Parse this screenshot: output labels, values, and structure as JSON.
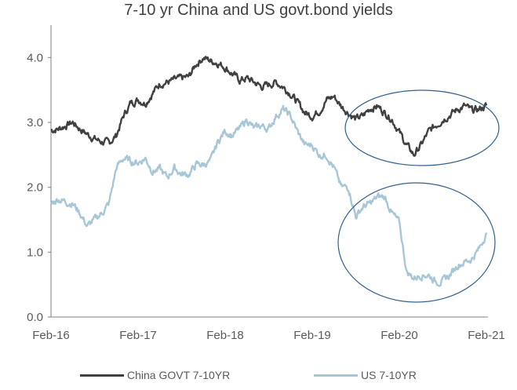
{
  "chart_data": {
    "type": "line",
    "title": "7-10 yr China and US govt.bond yields",
    "xlabel": "",
    "ylabel": "",
    "x_ticks": [
      "Feb-16",
      "Feb-17",
      "Feb-18",
      "Feb-19",
      "Feb-20",
      "Feb-21"
    ],
    "y_ticks": [
      "0.0",
      "1.0",
      "2.0",
      "3.0",
      "4.0"
    ],
    "ylim": [
      0,
      4.5
    ],
    "grid": false,
    "legend_position": "bottom",
    "annotations": [
      "ellipse around China yields Feb-19 to Feb-21",
      "ellipse around US yields Feb-19 to Feb-21"
    ],
    "series": [
      {
        "name": "China GOVT 7-10YR",
        "color": "#404040",
        "x": [
          "Feb-16",
          "Mar-16",
          "Apr-16",
          "May-16",
          "Jun-16",
          "Jul-16",
          "Aug-16",
          "Sep-16",
          "Oct-16",
          "Nov-16",
          "Dec-16",
          "Jan-17",
          "Feb-17",
          "Mar-17",
          "Apr-17",
          "May-17",
          "Jun-17",
          "Jul-17",
          "Aug-17",
          "Sep-17",
          "Oct-17",
          "Nov-17",
          "Dec-17",
          "Jan-18",
          "Feb-18",
          "Mar-18",
          "Apr-18",
          "May-18",
          "Jun-18",
          "Jul-18",
          "Aug-18",
          "Sep-18",
          "Oct-18",
          "Nov-18",
          "Dec-18",
          "Jan-19",
          "Feb-19",
          "Mar-19",
          "Apr-19",
          "May-19",
          "Jun-19",
          "Jul-19",
          "Aug-19",
          "Sep-19",
          "Oct-19",
          "Nov-19",
          "Dec-19",
          "Jan-20",
          "Feb-20",
          "Mar-20",
          "Apr-20",
          "May-20",
          "Jun-20",
          "Jul-20",
          "Aug-20",
          "Sep-20",
          "Oct-20",
          "Nov-20",
          "Dec-20",
          "Jan-21",
          "Feb-21"
        ],
        "values": [
          2.88,
          2.9,
          2.95,
          3.0,
          2.9,
          2.82,
          2.75,
          2.7,
          2.68,
          2.8,
          3.1,
          3.3,
          3.35,
          3.3,
          3.45,
          3.6,
          3.62,
          3.65,
          3.68,
          3.7,
          3.9,
          4.0,
          3.95,
          3.92,
          3.85,
          3.75,
          3.65,
          3.68,
          3.62,
          3.55,
          3.58,
          3.62,
          3.55,
          3.45,
          3.3,
          3.15,
          3.1,
          3.18,
          3.35,
          3.4,
          3.25,
          3.15,
          3.05,
          3.1,
          3.22,
          3.25,
          3.15,
          3.05,
          2.85,
          2.65,
          2.5,
          2.65,
          2.85,
          2.95,
          3.05,
          3.12,
          3.2,
          3.25,
          3.18,
          3.2,
          3.26
        ]
      },
      {
        "name": "US 7-10YR",
        "color": "#a7c7d7",
        "x": [
          "Feb-16",
          "Mar-16",
          "Apr-16",
          "May-16",
          "Jun-16",
          "Jul-16",
          "Aug-16",
          "Sep-16",
          "Oct-16",
          "Nov-16",
          "Dec-16",
          "Jan-17",
          "Feb-17",
          "Mar-17",
          "Apr-17",
          "May-17",
          "Jun-17",
          "Jul-17",
          "Aug-17",
          "Sep-17",
          "Oct-17",
          "Nov-17",
          "Dec-17",
          "Jan-18",
          "Feb-18",
          "Mar-18",
          "Apr-18",
          "May-18",
          "Jun-18",
          "Jul-18",
          "Aug-18",
          "Sep-18",
          "Oct-18",
          "Nov-18",
          "Dec-18",
          "Jan-19",
          "Feb-19",
          "Mar-19",
          "Apr-19",
          "May-19",
          "Jun-19",
          "Jul-19",
          "Aug-19",
          "Sep-19",
          "Oct-19",
          "Nov-19",
          "Dec-19",
          "Jan-20",
          "Feb-20",
          "Mar-20",
          "Apr-20",
          "May-20",
          "Jun-20",
          "Jul-20",
          "Aug-20",
          "Sep-20",
          "Oct-20",
          "Nov-20",
          "Dec-20",
          "Jan-21",
          "Feb-21"
        ],
        "values": [
          1.75,
          1.82,
          1.78,
          1.75,
          1.6,
          1.4,
          1.5,
          1.6,
          1.75,
          2.3,
          2.45,
          2.4,
          2.38,
          2.45,
          2.25,
          2.28,
          2.15,
          2.3,
          2.2,
          2.2,
          2.35,
          2.35,
          2.4,
          2.7,
          2.87,
          2.8,
          2.9,
          3.05,
          2.9,
          2.95,
          2.9,
          3.1,
          3.2,
          3.1,
          2.85,
          2.65,
          2.65,
          2.5,
          2.5,
          2.3,
          2.0,
          2.0,
          1.55,
          1.7,
          1.75,
          1.85,
          1.85,
          1.6,
          1.45,
          0.7,
          0.6,
          0.65,
          0.65,
          0.55,
          0.55,
          0.65,
          0.8,
          0.85,
          0.9,
          1.05,
          1.3
        ]
      }
    ]
  }
}
